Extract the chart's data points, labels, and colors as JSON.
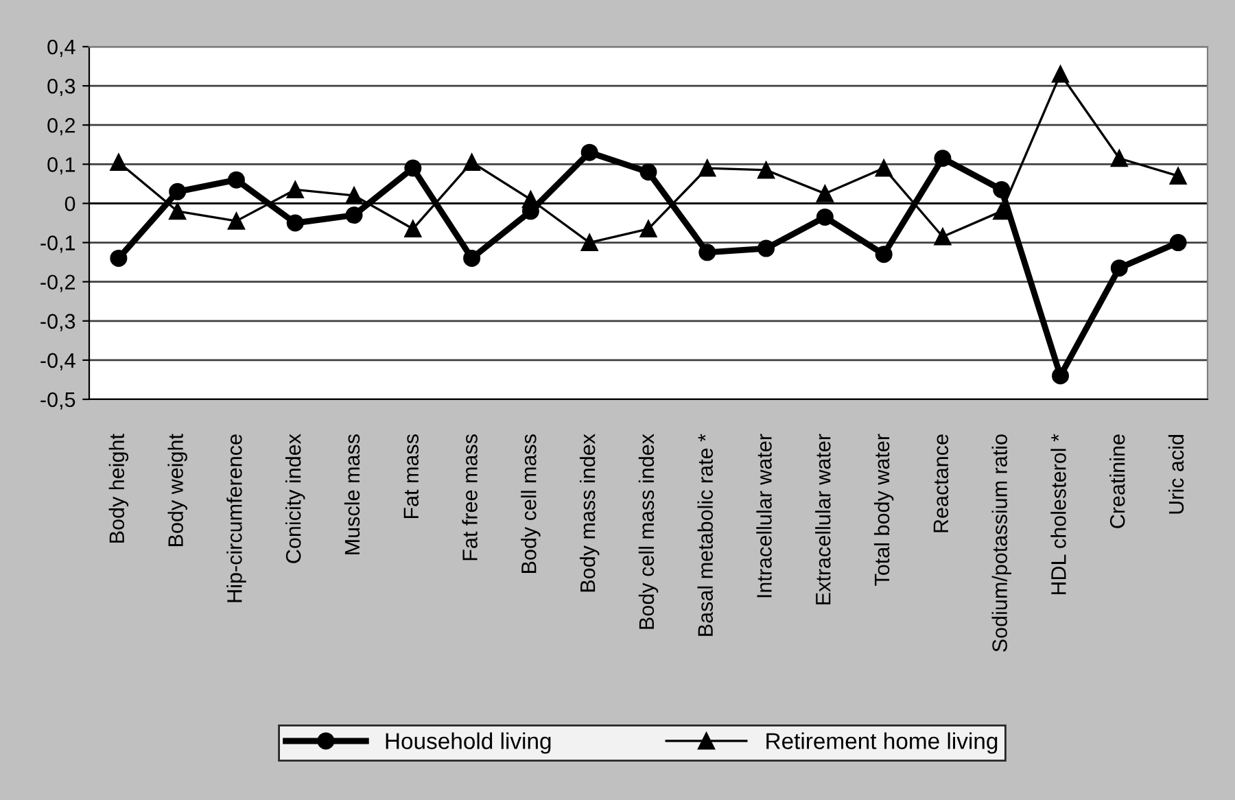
{
  "chart_data": {
    "type": "line",
    "categories": [
      "Body height",
      "Body weight",
      "Hip-circumference",
      "Conicity index",
      "Muscle mass",
      "Fat mass",
      "Fat free mass",
      "Body cell mass",
      "Body mass index",
      "Body cell mass index",
      "Basal metabolic rate *",
      "Intracellular water",
      "Extracellular water",
      "Total body water",
      "Reactance",
      "Sodium/potassium ratio",
      "HDL cholesterol *",
      "Creatinine",
      "Uric acid"
    ],
    "series": [
      {
        "name": "Household living",
        "color": "#000000",
        "marker": "circle",
        "values": [
          -0.14,
          0.03,
          0.06,
          -0.05,
          -0.03,
          0.09,
          -0.14,
          -0.02,
          0.13,
          0.08,
          -0.125,
          -0.115,
          -0.035,
          -0.13,
          0.115,
          0.035,
          -0.44,
          -0.165,
          -0.1
        ]
      },
      {
        "name": "Retirement home living",
        "color": "#000000",
        "marker": "triangle",
        "values": [
          0.105,
          -0.02,
          -0.045,
          0.035,
          0.02,
          -0.065,
          0.105,
          0.01,
          -0.1,
          -0.065,
          0.09,
          0.085,
          0.025,
          0.09,
          -0.085,
          -0.02,
          0.33,
          0.115,
          0.07
        ]
      }
    ],
    "ylim": [
      -0.5,
      0.4
    ],
    "yticks": [
      {
        "value": 0.4,
        "label": "0,4"
      },
      {
        "value": 0.3,
        "label": "0,3"
      },
      {
        "value": 0.2,
        "label": "0,2"
      },
      {
        "value": 0.1,
        "label": "0,1"
      },
      {
        "value": 0,
        "label": "0"
      },
      {
        "value": -0.1,
        "label": "-0,1"
      },
      {
        "value": -0.2,
        "label": "-0,2"
      },
      {
        "value": -0.3,
        "label": "-0,3"
      },
      {
        "value": -0.4,
        "label": "-0,4"
      },
      {
        "value": -0.5,
        "label": "-0,5"
      }
    ],
    "grid": "y",
    "legend": "bottom",
    "line_style": "solid"
  }
}
